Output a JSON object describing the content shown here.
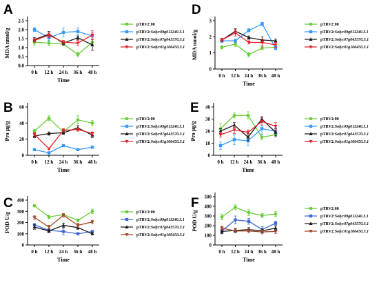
{
  "figure": {
    "panels": [
      {
        "label": "A",
        "ylabel": "MDA nmol/g"
      },
      {
        "label": "D",
        "ylabel": "MDA nmol/g"
      },
      {
        "label": "B",
        "ylabel": "Pro μg/g"
      },
      {
        "label": "E",
        "ylabel": "Pro μg/g"
      },
      {
        "label": "C",
        "ylabel": "POD U/g"
      },
      {
        "label": "F",
        "ylabel": "POD U/g"
      }
    ],
    "xlabel": "Time",
    "legend": [
      {
        "prefix": "pTRV2:",
        "gene": "00"
      },
      {
        "prefix": "pTRV2:",
        "gene": "Solyc09g011240.3.1"
      },
      {
        "prefix": "pTRV2:",
        "gene": "Solyc07g043570.3.1"
      },
      {
        "prefix": "pTRV2:",
        "gene": "Solyc01g106450.3.1"
      }
    ]
  },
  "colors": {
    "series": [
      "#66cc33",
      "#3399ff",
      "#1a1a1a",
      "#e8202a"
    ],
    "series_panel_C": [
      "#66cc33",
      "#3f67d9",
      "#1a1a1a",
      "#a0462a"
    ],
    "series_panel_F": [
      "#66cc33",
      "#3f67d9",
      "#1a1a1a",
      "#a0462a"
    ]
  },
  "chart_data": [
    {
      "type": "line",
      "panel": "A",
      "categories": [
        "0 h",
        "12 h",
        "24 h",
        "36 h",
        "48 h"
      ],
      "ylabel": "MDA nmol/g",
      "xlabel": "Time",
      "ylim": [
        0,
        2.5
      ],
      "yticks": [
        0.0,
        0.5,
        1.0,
        1.5,
        2.0,
        2.5
      ],
      "series": [
        {
          "name": "pTRV2:00",
          "values": [
            1.3,
            1.25,
            1.2,
            0.62,
            1.3
          ],
          "errors": [
            0.15,
            0.15,
            0.1,
            0.12,
            0.15
          ]
        },
        {
          "name": "pTRV2:Solyc09g011240.3.1",
          "values": [
            2.0,
            1.55,
            1.85,
            1.9,
            1.65
          ],
          "errors": [
            0.1,
            0.2,
            0.25,
            0.2,
            0.2
          ]
        },
        {
          "name": "pTRV2:Solyc07g043570.3.1",
          "values": [
            1.45,
            1.75,
            1.25,
            1.55,
            1.15
          ],
          "errors": [
            0.1,
            0.15,
            0.1,
            0.1,
            0.3
          ]
        },
        {
          "name": "pTRV2:Solyc01g106450.3.1",
          "values": [
            1.4,
            1.7,
            1.3,
            1.25,
            1.7
          ],
          "errors": [
            0.1,
            0.15,
            0.1,
            0.15,
            0.25
          ]
        }
      ]
    },
    {
      "type": "line",
      "panel": "D",
      "categories": [
        "0 h",
        "12 h",
        "24 h",
        "36 h",
        "48 h"
      ],
      "ylabel": "MDA nmol/g",
      "xlabel": "Time",
      "ylim": [
        0,
        3
      ],
      "yticks": [
        0,
        1,
        2,
        3
      ],
      "series": [
        {
          "name": "pTRV2:00",
          "values": [
            1.35,
            1.55,
            0.9,
            1.3,
            1.35
          ],
          "errors": [
            0.1,
            0.15,
            0.15,
            0.1,
            0.1
          ]
        },
        {
          "name": "pTRV2:Solyc09g011240.3.1",
          "values": [
            1.75,
            1.75,
            2.4,
            2.8,
            1.3
          ],
          "errors": [
            0.1,
            0.1,
            0.1,
            0.1,
            0.1
          ]
        },
        {
          "name": "pTRV2:Solyc07g043570.3.1",
          "values": [
            1.8,
            2.35,
            1.95,
            1.8,
            1.75
          ],
          "errors": [
            0.1,
            0.15,
            0.1,
            0.2,
            0.1
          ]
        },
        {
          "name": "pTRV2:Solyc01g106450.3.1",
          "values": [
            1.8,
            2.25,
            1.65,
            1.65,
            1.5
          ],
          "errors": [
            0.1,
            0.2,
            0.1,
            0.2,
            0.15
          ]
        }
      ]
    },
    {
      "type": "line",
      "panel": "B",
      "categories": [
        "0 h",
        "12 h",
        "24 h",
        "36 h",
        "48 h"
      ],
      "ylabel": "Pro μg/g",
      "xlabel": "Time",
      "ylim": [
        0,
        60
      ],
      "yticks": [
        0,
        20,
        40,
        60
      ],
      "series": [
        {
          "name": "pTRV2:00",
          "values": [
            30,
            46,
            29,
            44,
            40
          ],
          "errors": [
            2,
            3,
            2,
            5,
            3
          ]
        },
        {
          "name": "pTRV2:Solyc09g011240.3.1",
          "values": [
            7,
            3,
            12,
            7,
            10
          ],
          "errors": [
            1,
            1,
            1,
            1,
            1
          ]
        },
        {
          "name": "pTRV2:Solyc07g043570.3.1",
          "values": [
            24,
            27,
            28,
            34,
            25
          ],
          "errors": [
            2,
            2,
            2,
            3,
            3
          ]
        },
        {
          "name": "pTRV2:Solyc01g106450.3.1",
          "values": [
            26,
            8,
            31,
            32,
            27
          ],
          "errors": [
            2,
            1,
            2,
            2,
            2
          ]
        }
      ]
    },
    {
      "type": "line",
      "panel": "E",
      "categories": [
        "0 h",
        "12 h",
        "24 h",
        "36 h",
        "48 h"
      ],
      "ylabel": "Pro μg/g",
      "xlabel": "Time",
      "ylim": [
        0,
        40
      ],
      "yticks": [
        0,
        10,
        20,
        30,
        40
      ],
      "series": [
        {
          "name": "pTRV2:00",
          "values": [
            22,
            33,
            33,
            15,
            17
          ],
          "errors": [
            4,
            2,
            3,
            2,
            2
          ]
        },
        {
          "name": "pTRV2:Solyc09g011240.3.1",
          "values": [
            8,
            13,
            12,
            22,
            20
          ],
          "errors": [
            3,
            4,
            4,
            5,
            3
          ]
        },
        {
          "name": "pTRV2:Solyc07g043570.3.1",
          "values": [
            20,
            25,
            15,
            30,
            19
          ],
          "errors": [
            2,
            2,
            3,
            2,
            3
          ]
        },
        {
          "name": "pTRV2:Solyc01g106450.3.1",
          "values": [
            17,
            21,
            19,
            28,
            24
          ],
          "errors": [
            2,
            3,
            2,
            3,
            3
          ]
        }
      ]
    },
    {
      "type": "line",
      "panel": "C",
      "categories": [
        "0 h",
        "12 h",
        "24 h",
        "36 h",
        "48 h"
      ],
      "ylabel": "POD U/g",
      "xlabel": "Time",
      "ylim": [
        0,
        400
      ],
      "yticks": [
        0,
        100,
        200,
        300,
        400
      ],
      "series": [
        {
          "name": "pTRV2:00",
          "values": [
            350,
            250,
            270,
            220,
            300
          ],
          "errors": [
            10,
            15,
            10,
            10,
            20
          ]
        },
        {
          "name": "pTRV2:Solyc09g011240.3.1",
          "values": [
            180,
            130,
            120,
            100,
            120
          ],
          "errors": [
            10,
            10,
            30,
            10,
            10
          ]
        },
        {
          "name": "pTRV2:Solyc07g043570.3.1",
          "values": [
            160,
            125,
            175,
            155,
            100
          ],
          "errors": [
            20,
            15,
            20,
            15,
            10
          ]
        },
        {
          "name": "pTRV2:Solyc01g106450.3.1",
          "values": [
            245,
            160,
            265,
            175,
            205
          ],
          "errors": [
            15,
            15,
            15,
            20,
            15
          ]
        }
      ]
    },
    {
      "type": "line",
      "panel": "F",
      "categories": [
        "0 h",
        "12 h",
        "24 h",
        "36 h",
        "48 h"
      ],
      "ylabel": "POD U/g",
      "xlabel": "Time",
      "ylim": [
        0,
        500
      ],
      "yticks": [
        0,
        100,
        200,
        300,
        400,
        500
      ],
      "series": [
        {
          "name": "pTRV2:00",
          "values": [
            290,
            390,
            335,
            305,
            320
          ],
          "errors": [
            30,
            25,
            30,
            20,
            25
          ]
        },
        {
          "name": "pTRV2:Solyc09g011240.3.1",
          "values": [
            145,
            260,
            245,
            160,
            225
          ],
          "errors": [
            30,
            40,
            30,
            30,
            20
          ]
        },
        {
          "name": "pTRV2:Solyc07g043570.3.1",
          "values": [
            140,
            150,
            160,
            145,
            175
          ],
          "errors": [
            20,
            20,
            20,
            20,
            20
          ]
        },
        {
          "name": "pTRV2:Solyc01g106450.3.1",
          "values": [
            175,
            145,
            145,
            135,
            140
          ],
          "errors": [
            20,
            20,
            20,
            20,
            20
          ]
        }
      ]
    }
  ]
}
